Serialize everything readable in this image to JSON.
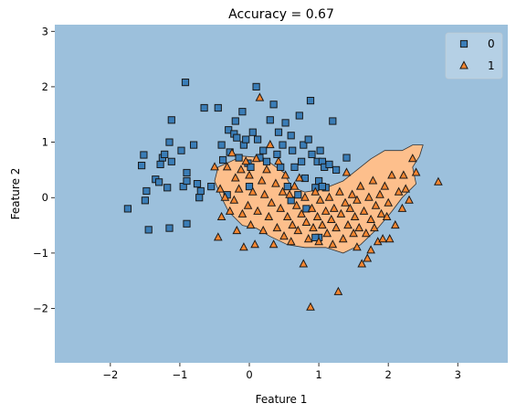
{
  "chart_data": {
    "type": "scatter",
    "title": "Accuracy = 0.67",
    "xlabel": "Feature 1",
    "ylabel": "Feature 2",
    "xlim": [
      -2.8,
      3.72
    ],
    "ylim": [
      -2.98,
      3.12
    ],
    "xticks": [
      -2,
      -1,
      0,
      1,
      2,
      3
    ],
    "yticks": [
      -2,
      -1,
      0,
      1,
      2,
      3
    ],
    "grid": false,
    "legend_position": "top-right",
    "colors": {
      "class0_region": "#9cc0dc",
      "class1_region": "#fdbf8c",
      "class0_marker": "#3a7db7",
      "class1_marker": "#f48530",
      "edge": "#1a1a1a"
    },
    "decision_region_class1": [
      [
        -0.45,
        0.55
      ],
      [
        -0.1,
        0.75
      ],
      [
        0.2,
        0.72
      ],
      [
        0.5,
        0.45
      ],
      [
        0.6,
        0.2
      ],
      [
        0.8,
        0.1
      ],
      [
        1.05,
        0.15
      ],
      [
        1.35,
        0.3
      ],
      [
        1.55,
        0.5
      ],
      [
        1.75,
        0.7
      ],
      [
        1.95,
        0.85
      ],
      [
        2.2,
        0.85
      ],
      [
        2.35,
        0.95
      ],
      [
        2.5,
        0.95
      ],
      [
        2.45,
        0.75
      ],
      [
        2.35,
        0.55
      ],
      [
        2.4,
        0.25
      ],
      [
        2.2,
        0.0
      ],
      [
        2.05,
        -0.25
      ],
      [
        1.85,
        -0.55
      ],
      [
        1.6,
        -0.85
      ],
      [
        1.35,
        -1.0
      ],
      [
        1.1,
        -0.9
      ],
      [
        0.8,
        -0.9
      ],
      [
        0.55,
        -0.85
      ],
      [
        0.3,
        -0.7
      ],
      [
        0.1,
        -0.55
      ],
      [
        -0.1,
        -0.5
      ],
      [
        -0.3,
        -0.25
      ],
      [
        -0.4,
        0.0
      ],
      [
        -0.5,
        0.3
      ]
    ],
    "series": [
      {
        "name": "0",
        "marker": "square",
        "points": [
          [
            -1.75,
            -0.2
          ],
          [
            -1.55,
            0.58
          ],
          [
            -1.52,
            0.77
          ],
          [
            -1.5,
            -0.05
          ],
          [
            -1.48,
            0.12
          ],
          [
            -1.45,
            -0.58
          ],
          [
            -1.35,
            0.33
          ],
          [
            -1.3,
            0.28
          ],
          [
            -1.28,
            0.6
          ],
          [
            -1.25,
            0.72
          ],
          [
            -1.22,
            0.78
          ],
          [
            -1.18,
            0.18
          ],
          [
            -1.15,
            1.0
          ],
          [
            -1.12,
            0.65
          ],
          [
            -1.15,
            -0.55
          ],
          [
            -1.12,
            1.4
          ],
          [
            -0.98,
            0.85
          ],
          [
            -0.95,
            0.2
          ],
          [
            -0.9,
            0.3
          ],
          [
            -0.9,
            0.45
          ],
          [
            -0.92,
            2.08
          ],
          [
            -0.9,
            -0.47
          ],
          [
            -0.8,
            0.95
          ],
          [
            -0.75,
            0.25
          ],
          [
            -0.72,
            0.0
          ],
          [
            -0.7,
            0.12
          ],
          [
            -0.65,
            1.62
          ],
          [
            -0.55,
            0.2
          ],
          [
            -0.45,
            1.62
          ],
          [
            -0.4,
            0.95
          ],
          [
            -0.38,
            0.68
          ],
          [
            -0.32,
            0.05
          ],
          [
            -0.3,
            1.22
          ],
          [
            -0.28,
            0.82
          ],
          [
            -0.22,
            1.15
          ],
          [
            -0.2,
            1.38
          ],
          [
            -0.18,
            1.08
          ],
          [
            -0.15,
            0.72
          ],
          [
            -0.1,
            1.55
          ],
          [
            -0.08,
            0.95
          ],
          [
            -0.05,
            1.05
          ],
          [
            -0.02,
            0.62
          ],
          [
            0.0,
            0.2
          ],
          [
            0.02,
            0.55
          ],
          [
            0.05,
            1.18
          ],
          [
            0.1,
            2.0
          ],
          [
            0.12,
            1.05
          ],
          [
            0.15,
            0.72
          ],
          [
            0.2,
            0.85
          ],
          [
            0.25,
            0.65
          ],
          [
            0.3,
            1.4
          ],
          [
            0.35,
            1.68
          ],
          [
            0.4,
            0.78
          ],
          [
            0.42,
            1.18
          ],
          [
            0.45,
            0.55
          ],
          [
            0.48,
            0.95
          ],
          [
            0.52,
            1.35
          ],
          [
            0.55,
            0.2
          ],
          [
            0.6,
            1.12
          ],
          [
            0.62,
            0.85
          ],
          [
            0.65,
            0.55
          ],
          [
            0.7,
            0.05
          ],
          [
            0.72,
            1.48
          ],
          [
            0.75,
            0.65
          ],
          [
            0.78,
            0.95
          ],
          [
            0.8,
            0.35
          ],
          [
            0.85,
            1.05
          ],
          [
            0.88,
            1.75
          ],
          [
            0.9,
            0.78
          ],
          [
            0.95,
            0.18
          ],
          [
            0.98,
            0.65
          ],
          [
            1.0,
            0.3
          ],
          [
            1.02,
            0.85
          ],
          [
            1.05,
            0.65
          ],
          [
            1.08,
            0.55
          ],
          [
            1.1,
            0.18
          ],
          [
            1.15,
            0.6
          ],
          [
            1.2,
            1.38
          ],
          [
            1.25,
            0.5
          ],
          [
            1.4,
            0.72
          ],
          [
            1.0,
            -0.72
          ],
          [
            1.05,
            0.2
          ],
          [
            0.95,
            -0.72
          ],
          [
            0.82,
            -0.2
          ],
          [
            0.6,
            -0.05
          ]
        ]
      },
      {
        "name": "1",
        "marker": "triangle",
        "points": [
          [
            -0.5,
            0.55
          ],
          [
            -0.45,
            -0.72
          ],
          [
            -0.4,
            -0.35
          ],
          [
            -0.42,
            0.15
          ],
          [
            -0.35,
            0.0
          ],
          [
            -0.32,
            0.55
          ],
          [
            -0.28,
            -0.25
          ],
          [
            -0.25,
            0.8
          ],
          [
            -0.22,
            -0.05
          ],
          [
            -0.2,
            0.35
          ],
          [
            -0.18,
            -0.6
          ],
          [
            -0.15,
            0.15
          ],
          [
            -0.12,
            0.5
          ],
          [
            -0.1,
            -0.3
          ],
          [
            -0.08,
            -0.9
          ],
          [
            -0.05,
            0.65
          ],
          [
            -0.02,
            -0.15
          ],
          [
            0.0,
            0.4
          ],
          [
            0.02,
            -0.5
          ],
          [
            0.05,
            0.1
          ],
          [
            0.08,
            -0.85
          ],
          [
            0.1,
            0.7
          ],
          [
            0.12,
            -0.25
          ],
          [
            0.15,
            1.8
          ],
          [
            0.18,
            0.3
          ],
          [
            0.2,
            -0.6
          ],
          [
            0.22,
            0.05
          ],
          [
            0.25,
            0.5
          ],
          [
            0.28,
            -0.35
          ],
          [
            0.3,
            0.95
          ],
          [
            0.32,
            -0.1
          ],
          [
            0.35,
            -0.85
          ],
          [
            0.38,
            0.25
          ],
          [
            0.4,
            -0.55
          ],
          [
            0.42,
            0.65
          ],
          [
            0.45,
            -0.2
          ],
          [
            0.48,
            0.1
          ],
          [
            0.5,
            -0.7
          ],
          [
            0.52,
            0.4
          ],
          [
            0.55,
            -0.35
          ],
          [
            0.58,
            0.05
          ],
          [
            0.6,
            -0.8
          ],
          [
            0.62,
            -0.5
          ],
          [
            0.65,
            0.2
          ],
          [
            0.68,
            -0.15
          ],
          [
            0.7,
            -0.6
          ],
          [
            0.72,
            0.35
          ],
          [
            0.75,
            -0.3
          ],
          [
            0.78,
            -1.2
          ],
          [
            0.8,
            0.0
          ],
          [
            0.82,
            -0.45
          ],
          [
            0.85,
            -0.75
          ],
          [
            0.88,
            -1.98
          ],
          [
            0.9,
            -0.2
          ],
          [
            0.92,
            -0.55
          ],
          [
            0.95,
            0.1
          ],
          [
            0.98,
            -0.35
          ],
          [
            1.0,
            -0.8
          ],
          [
            1.02,
            -0.05
          ],
          [
            1.05,
            -0.5
          ],
          [
            1.1,
            -0.25
          ],
          [
            1.12,
            -0.65
          ],
          [
            1.15,
            0.0
          ],
          [
            1.18,
            -0.4
          ],
          [
            1.2,
            -0.85
          ],
          [
            1.22,
            -0.2
          ],
          [
            1.25,
            -0.55
          ],
          [
            1.28,
            -1.7
          ],
          [
            1.3,
            0.1
          ],
          [
            1.32,
            -0.3
          ],
          [
            1.35,
            -0.75
          ],
          [
            1.38,
            -0.1
          ],
          [
            1.4,
            0.45
          ],
          [
            1.42,
            -0.5
          ],
          [
            1.45,
            -0.2
          ],
          [
            1.48,
            0.05
          ],
          [
            1.5,
            -0.65
          ],
          [
            1.52,
            -0.35
          ],
          [
            1.55,
            -0.05
          ],
          [
            1.58,
            -0.55
          ],
          [
            1.6,
            0.2
          ],
          [
            1.62,
            -1.2
          ],
          [
            1.65,
            -0.25
          ],
          [
            1.68,
            -0.65
          ],
          [
            1.7,
            -1.1
          ],
          [
            1.72,
            0.0
          ],
          [
            1.75,
            -0.4
          ],
          [
            1.78,
            0.3
          ],
          [
            1.8,
            -0.55
          ],
          [
            1.82,
            -0.15
          ],
          [
            1.85,
            -0.8
          ],
          [
            1.88,
            0.05
          ],
          [
            1.9,
            -0.3
          ],
          [
            1.92,
            -0.75
          ],
          [
            1.95,
            0.2
          ],
          [
            1.98,
            -0.35
          ],
          [
            2.0,
            -0.1
          ],
          [
            2.02,
            -0.75
          ],
          [
            2.05,
            0.4
          ],
          [
            2.1,
            -0.5
          ],
          [
            2.15,
            0.1
          ],
          [
            2.2,
            -0.2
          ],
          [
            2.25,
            0.15
          ],
          [
            2.3,
            -0.05
          ],
          [
            2.35,
            0.7
          ],
          [
            2.4,
            0.45
          ],
          [
            2.72,
            0.28
          ],
          [
            2.22,
            0.4
          ],
          [
            1.55,
            -0.9
          ],
          [
            1.75,
            -0.95
          ]
        ]
      }
    ]
  }
}
